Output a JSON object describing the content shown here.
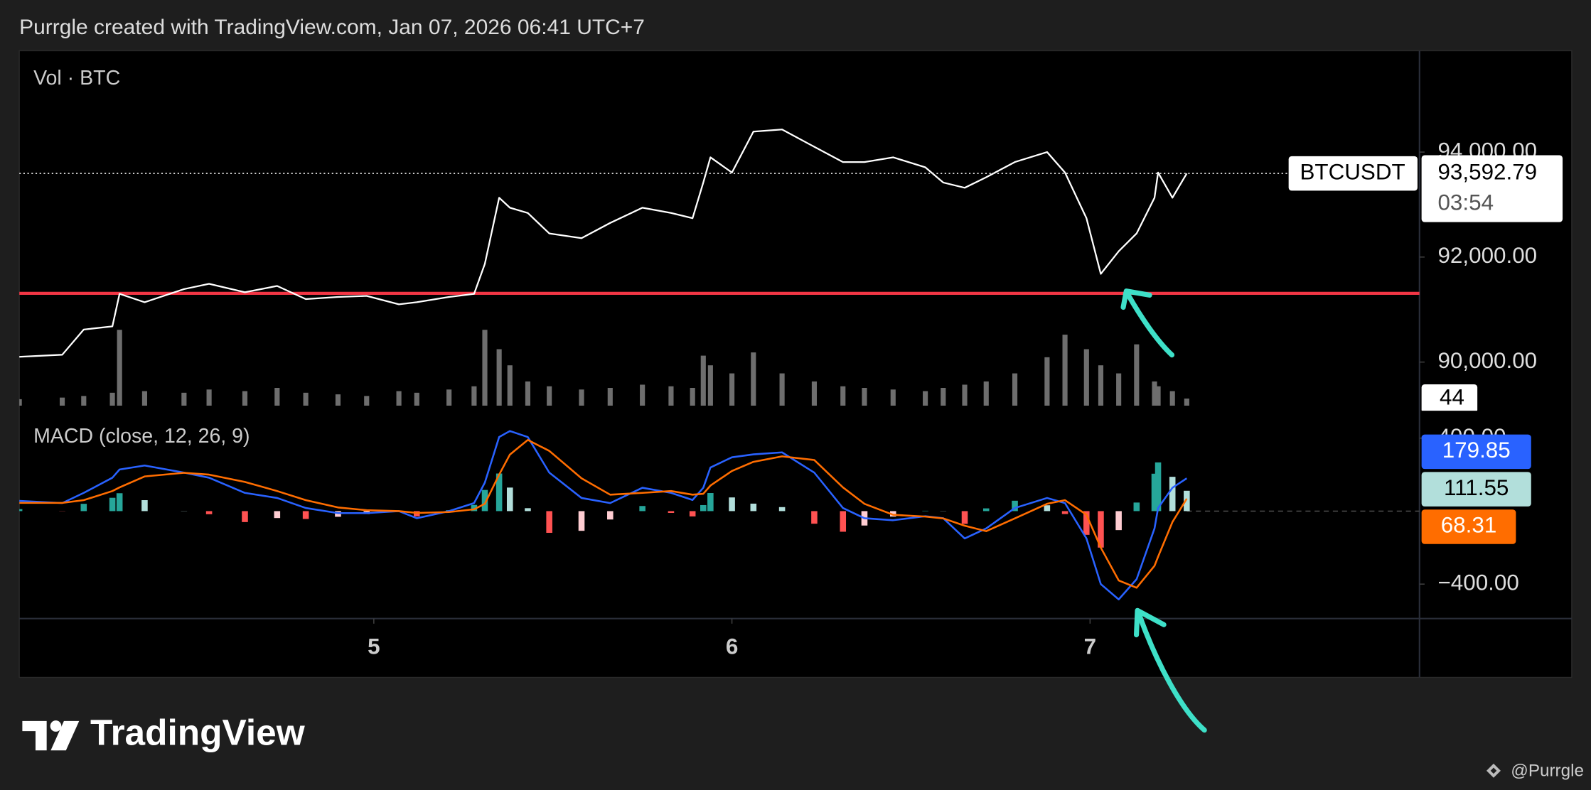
{
  "header": "Purrgle created with TradingView.com, Jan 07, 2026 06:41 UTC+7",
  "footer": {
    "brand": "TradingView",
    "author": "@Purrgle"
  },
  "chart_data": [
    {
      "type": "line",
      "x": [
        4.01,
        4.13,
        4.19,
        4.27,
        4.29,
        4.36,
        4.47,
        4.54,
        4.64,
        4.73,
        4.81,
        4.9,
        4.98,
        5.07,
        5.12,
        5.21,
        5.28,
        5.31,
        5.35,
        5.38,
        5.43,
        5.49,
        5.58,
        5.66,
        5.75,
        5.83,
        5.89,
        5.92,
        5.94,
        6,
        6.06,
        6.14,
        6.23,
        6.31,
        6.37,
        6.45,
        6.54,
        6.59,
        6.65,
        6.71,
        6.79,
        6.88,
        6.93,
        6.99,
        7.03,
        7.08,
        7.13,
        7.18,
        7.19,
        7.23,
        7.27
      ],
      "series": [
        {
          "name": "BTCUSDT",
          "color": "#ffffff",
          "values": [
            90100,
            90140,
            90620,
            90680,
            91300,
            91140,
            91390,
            91490,
            91330,
            91450,
            91200,
            91240,
            91260,
            91100,
            91140,
            91240,
            91300,
            91870,
            93130,
            92940,
            92840,
            92450,
            92360,
            92650,
            92940,
            92840,
            92740,
            93420,
            93900,
            93610,
            94390,
            94430,
            94100,
            93810,
            93810,
            93900,
            93710,
            93420,
            93320,
            93520,
            93810,
            94000,
            93610,
            92740,
            91680,
            92110,
            92450,
            93130,
            93610,
            93130,
            93592.79
          ]
        },
        {
          "name": "Vol · BTC",
          "type": "bar",
          "axis": "y2",
          "color": "#6e6e6e",
          "values": [
            40,
            50,
            60,
            80,
            470,
            90,
            80,
            100,
            90,
            110,
            80,
            70,
            60,
            90,
            80,
            100,
            120,
            470,
            350,
            250,
            150,
            120,
            100,
            110,
            130,
            120,
            110,
            310,
            250,
            200,
            330,
            200,
            150,
            120,
            110,
            100,
            90,
            110,
            130,
            150,
            200,
            300,
            440,
            350,
            250,
            200,
            380,
            150,
            120,
            90,
            44
          ]
        }
      ],
      "xlim": [
        4.01,
        7.92
      ],
      "ylim": [
        89170,
        95930
      ],
      "yticks": [
        {
          "value": 94000,
          "label": "94,000.00"
        },
        {
          "value": 92000,
          "label": "92,000.00"
        },
        {
          "value": 90000,
          "label": "90,000.00"
        }
      ],
      "y2lim": [
        0,
        2200
      ],
      "last_price": {
        "value": 93592.79,
        "label": "93,592.79"
      },
      "countdown": "03:54",
      "hline": {
        "value": 91310,
        "color": "#f23645"
      }
    },
    {
      "type": "macd",
      "title": "MACD (close, 12, 26, 9)",
      "x": [
        4.01,
        4.13,
        4.19,
        4.27,
        4.29,
        4.36,
        4.47,
        4.54,
        4.64,
        4.73,
        4.81,
        4.9,
        4.98,
        5.07,
        5.12,
        5.21,
        5.28,
        5.31,
        5.35,
        5.38,
        5.43,
        5.49,
        5.58,
        5.66,
        5.75,
        5.83,
        5.89,
        5.92,
        5.94,
        6,
        6.06,
        6.14,
        6.23,
        6.31,
        6.37,
        6.45,
        6.54,
        6.59,
        6.65,
        6.71,
        6.79,
        6.88,
        6.93,
        6.99,
        7.03,
        7.08,
        7.13,
        7.18,
        7.19,
        7.23,
        7.27
      ],
      "series": [
        {
          "type": "line",
          "color": "#2962ff",
          "values": [
            56,
            44,
            100,
            183,
            228,
            250,
            211,
            183,
            100,
            72,
            17,
            -11,
            -11,
            0,
            -39,
            0,
            44,
            156,
            406,
            439,
            406,
            211,
            72,
            44,
            128,
            100,
            61,
            128,
            239,
            295,
            311,
            322,
            211,
            17,
            -39,
            -50,
            -28,
            -39,
            -150,
            -95,
            17,
            72,
            44,
            -150,
            -400,
            -484,
            -373,
            -95,
            17,
            128,
            179.85
          ]
        },
        {
          "type": "line",
          "color": "#ff6d00",
          "values": [
            45,
            45,
            60,
            110,
            130,
            190,
            210,
            200,
            160,
            110,
            60,
            20,
            5,
            0,
            -10,
            -5,
            10,
            40,
            200,
            310,
            390,
            330,
            180,
            90,
            100,
            110,
            90,
            95,
            140,
            220,
            270,
            300,
            280,
            130,
            40,
            -20,
            -30,
            -40,
            -80,
            -110,
            -40,
            40,
            60,
            -20,
            -200,
            -380,
            -420,
            -300,
            -250,
            -60,
            68.31
          ]
        },
        {
          "type": "histogram",
          "colors": {
            "grow_above": "#26a69a",
            "fall_above": "#b2dfdb",
            "grow_below": "#ffcdd2",
            "fall_below": "#ff5252"
          },
          "values": [
            11,
            -1,
            40,
            73,
            98,
            60,
            1,
            -17,
            -60,
            -38,
            -43,
            -31,
            -16,
            0,
            -29,
            5,
            34,
            116,
            206,
            129,
            16,
            -119,
            -108,
            -46,
            28,
            -10,
            -29,
            33,
            99,
            75,
            41,
            22,
            -69,
            -113,
            -79,
            -30,
            2,
            1,
            -70,
            15,
            57,
            32,
            -16,
            -130,
            -200,
            -104,
            47,
            205,
            267,
            188,
            111.55
          ]
        }
      ],
      "xlim": [
        4.01,
        7.92
      ],
      "xticks": [
        5,
        6,
        7
      ],
      "ylim": [
        -589,
        578
      ],
      "yticks": [
        {
          "value": 400,
          "label": "400.00"
        },
        {
          "value": -400,
          "label": "−400.00"
        }
      ]
    }
  ]
}
